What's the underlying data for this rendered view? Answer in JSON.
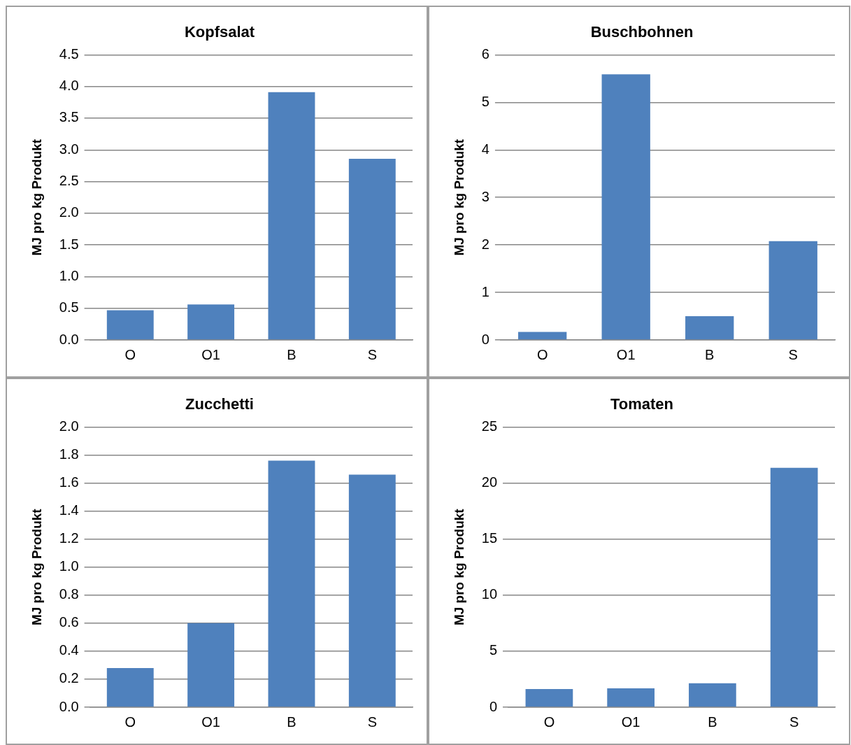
{
  "chart_data": [
    {
      "type": "bar",
      "title": "Kopfsalat",
      "ylabel": "MJ pro kg Produkt",
      "categories": [
        "O",
        "O1",
        "B",
        "S"
      ],
      "values": [
        0.47,
        0.56,
        3.91,
        2.86
      ],
      "color": "#4f81bd",
      "ylim": [
        0,
        4.5
      ],
      "yticks": [
        {
          "value": 0,
          "label": "0.0"
        },
        0.5,
        {
          "value": 1,
          "label": "1.0"
        },
        1.5,
        {
          "value": 2,
          "label": "2.0"
        },
        2.5,
        {
          "value": 3,
          "label": "3.0"
        },
        3.5,
        {
          "value": 4,
          "label": "4.0"
        },
        4.5
      ],
      "grid": "y",
      "legend": false
    },
    {
      "type": "bar",
      "title": "Buschbohnen",
      "ylabel": "MJ pro kg Produkt",
      "categories": [
        "O",
        "O1",
        "B",
        "S"
      ],
      "values": [
        0.17,
        5.59,
        0.5,
        2.08
      ],
      "color": "#4f81bd",
      "ylim": [
        0,
        6
      ],
      "yticks": [
        0,
        1,
        2,
        3,
        4,
        5,
        6
      ],
      "grid": "y",
      "legend": false
    },
    {
      "type": "bar",
      "title": "Zucchetti",
      "ylabel": "MJ pro kg Produkt",
      "categories": [
        "O",
        "O1",
        "B",
        "S"
      ],
      "values": [
        0.28,
        0.6,
        1.76,
        1.66
      ],
      "color": "#4f81bd",
      "ylim": [
        0,
        2
      ],
      "yticks": [
        {
          "value": 0,
          "label": "0.0"
        },
        0.2,
        0.4,
        0.6,
        0.8,
        {
          "value": 1,
          "label": "1.0"
        },
        1.2,
        1.4,
        1.6,
        1.8,
        {
          "value": 2,
          "label": "2.0"
        }
      ],
      "grid": "y",
      "legend": false
    },
    {
      "type": "bar",
      "title": "Tomaten",
      "ylabel": "MJ pro kg Produkt",
      "categories": [
        "O",
        "O1",
        "B",
        "S"
      ],
      "values": [
        1.62,
        1.69,
        2.14,
        21.36
      ],
      "color": "#4f81bd",
      "ylim": [
        0,
        25
      ],
      "yticks": [
        0,
        5,
        10,
        15,
        20,
        25
      ],
      "grid": "y",
      "legend": false
    }
  ]
}
